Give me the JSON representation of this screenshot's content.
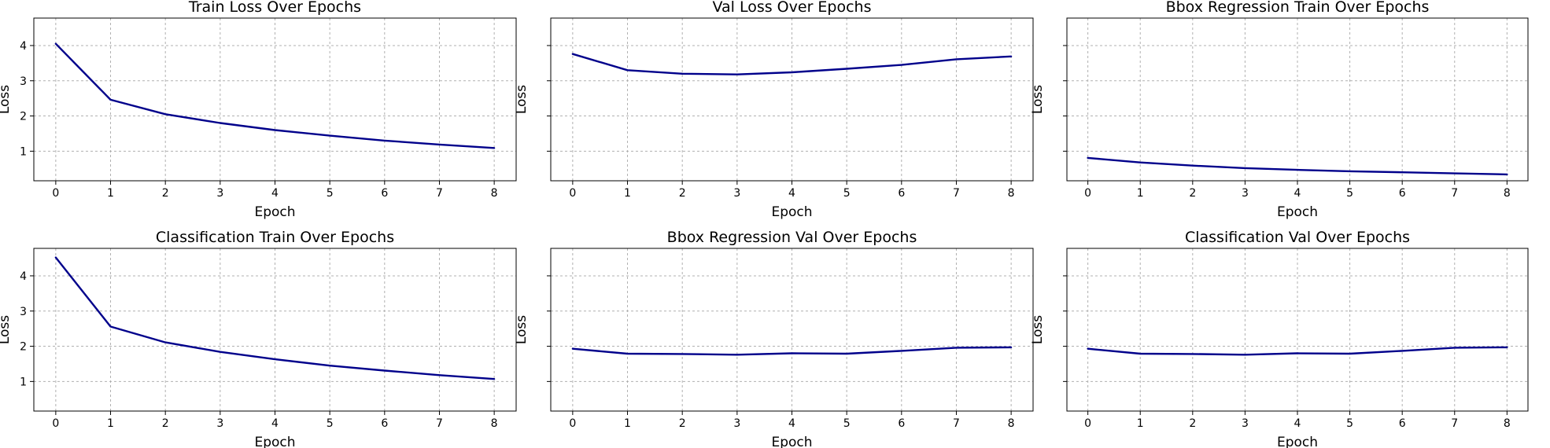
{
  "colors": {
    "line": "#00008b"
  },
  "chart_data": [
    {
      "type": "line",
      "title": "Train Loss Over Epochs",
      "xlabel": "Epoch",
      "ylabel": "Loss",
      "x": [
        0,
        1,
        2,
        3,
        4,
        5,
        6,
        7,
        8
      ],
      "series": [
        {
          "values": [
            4.05,
            2.46,
            2.05,
            1.8,
            1.6,
            1.44,
            1.3,
            1.19,
            1.09
          ]
        }
      ],
      "xlim": [
        -0.4,
        8.4
      ],
      "ylim": [
        0.16,
        4.78
      ],
      "yticks": [
        1,
        2,
        3,
        4
      ],
      "show_yticklabels": true,
      "grid": true
    },
    {
      "type": "line",
      "title": "Val Loss Over Epochs",
      "xlabel": "Epoch",
      "ylabel": "Loss",
      "x": [
        0,
        1,
        2,
        3,
        4,
        5,
        6,
        7,
        8
      ],
      "series": [
        {
          "values": [
            3.76,
            3.3,
            3.2,
            3.18,
            3.24,
            3.34,
            3.45,
            3.61,
            3.69
          ]
        }
      ],
      "xlim": [
        -0.4,
        8.4
      ],
      "ylim": [
        0.16,
        4.78
      ],
      "yticks": [
        1,
        2,
        3,
        4
      ],
      "show_yticklabels": false,
      "grid": true
    },
    {
      "type": "line",
      "title": "Bbox Regression Train Over Epochs",
      "xlabel": "Epoch",
      "ylabel": "Loss",
      "x": [
        0,
        1,
        2,
        3,
        4,
        5,
        6,
        7,
        8
      ],
      "series": [
        {
          "values": [
            0.81,
            0.68,
            0.59,
            0.52,
            0.47,
            0.43,
            0.4,
            0.37,
            0.34
          ]
        }
      ],
      "xlim": [
        -0.4,
        8.4
      ],
      "ylim": [
        0.16,
        4.78
      ],
      "yticks": [
        1,
        2,
        3,
        4
      ],
      "show_yticklabels": false,
      "grid": true
    },
    {
      "type": "line",
      "title": "Classification Train Over Epochs",
      "xlabel": "Epoch",
      "ylabel": "Loss",
      "x": [
        0,
        1,
        2,
        3,
        4,
        5,
        6,
        7,
        8
      ],
      "series": [
        {
          "values": [
            4.52,
            2.56,
            2.11,
            1.84,
            1.63,
            1.45,
            1.31,
            1.18,
            1.07
          ]
        }
      ],
      "xlim": [
        -0.4,
        8.4
      ],
      "ylim": [
        0.16,
        4.78
      ],
      "yticks": [
        1,
        2,
        3,
        4
      ],
      "show_yticklabels": true,
      "grid": true
    },
    {
      "type": "line",
      "title": "Bbox Regression Val Over Epochs",
      "xlabel": "Epoch",
      "ylabel": "Loss",
      "x": [
        0,
        1,
        2,
        3,
        4,
        5,
        6,
        7,
        8
      ],
      "series": [
        {
          "values": [
            1.93,
            1.79,
            1.78,
            1.76,
            1.8,
            1.79,
            1.87,
            1.96,
            1.97
          ]
        }
      ],
      "xlim": [
        -0.4,
        8.4
      ],
      "ylim": [
        0.16,
        4.78
      ],
      "yticks": [
        1,
        2,
        3,
        4
      ],
      "show_yticklabels": false,
      "grid": true
    },
    {
      "type": "line",
      "title": "Classification Val Over Epochs",
      "xlabel": "Epoch",
      "ylabel": "Loss",
      "x": [
        0,
        1,
        2,
        3,
        4,
        5,
        6,
        7,
        8
      ],
      "series": [
        {
          "values": [
            1.93,
            1.79,
            1.78,
            1.76,
            1.8,
            1.79,
            1.87,
            1.96,
            1.97
          ]
        }
      ],
      "xlim": [
        -0.4,
        8.4
      ],
      "ylim": [
        0.16,
        4.78
      ],
      "yticks": [
        1,
        2,
        3,
        4
      ],
      "show_yticklabels": false,
      "grid": true
    }
  ]
}
